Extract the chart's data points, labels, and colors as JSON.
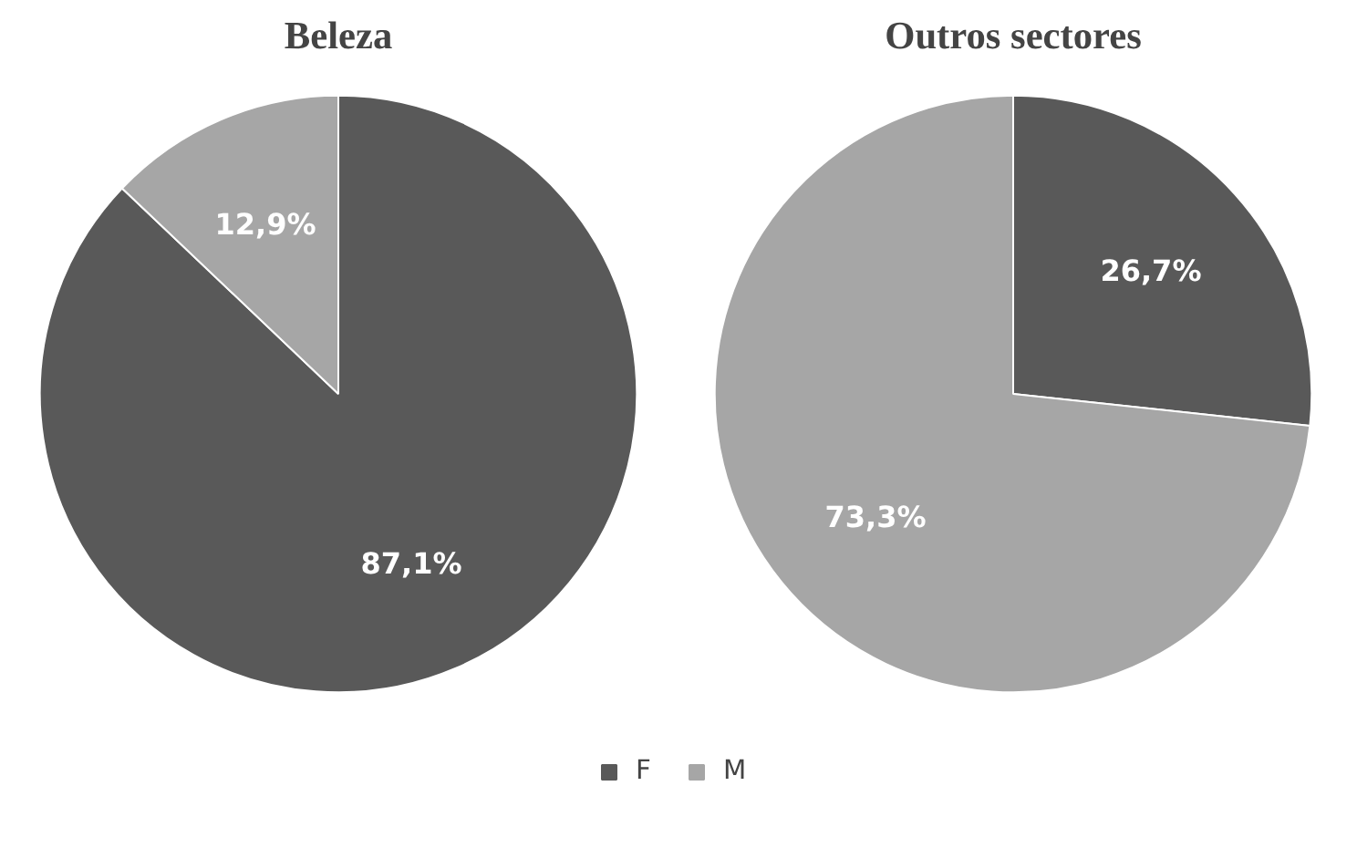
{
  "chart_data": [
    {
      "type": "pie",
      "title": "Beleza",
      "categories": [
        "F",
        "M"
      ],
      "values": [
        87.1,
        12.9
      ],
      "colors": [
        "#595959",
        "#a6a6a6"
      ],
      "value_labels": [
        "87,1%",
        "12,9%"
      ],
      "legend": "bottom"
    },
    {
      "type": "pie",
      "title": "Outros sectores",
      "categories": [
        null,
        null
      ],
      "values": [
        26.7,
        73.3
      ],
      "colors": [
        "#595959",
        "#a6a6a6"
      ],
      "value_labels": [
        "26,7%",
        "73,3%"
      ]
    }
  ]
}
